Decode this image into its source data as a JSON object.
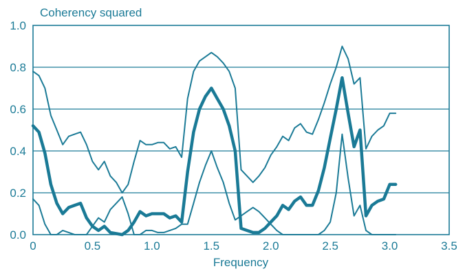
{
  "chart_data": {
    "type": "line",
    "title": "",
    "ylabel": "Coherency squared",
    "xlabel": "Frequency",
    "xlim": [
      0,
      3.5
    ],
    "ylim": [
      0,
      1.0
    ],
    "x_ticks": [
      "0",
      "0.5",
      "1.0",
      "1.5",
      "2.0",
      "2.5",
      "3.0",
      "3.5"
    ],
    "x_tick_values": [
      0,
      0.5,
      1.0,
      1.5,
      2.0,
      2.5,
      3.0,
      3.5
    ],
    "y_ticks": [
      "0.0",
      "0.2",
      "0.4",
      "0.6",
      "0.8",
      "1.0"
    ],
    "y_tick_values": [
      0.0,
      0.2,
      0.4,
      0.6,
      0.8,
      1.0
    ],
    "grid": "horizontal",
    "color": "#1a7a96",
    "series": [
      {
        "role": "upper",
        "x": [
          0,
          0.05,
          0.1,
          0.15,
          0.2,
          0.25,
          0.3,
          0.35,
          0.4,
          0.45,
          0.5,
          0.55,
          0.6,
          0.65,
          0.7,
          0.75,
          0.8,
          0.85,
          0.9,
          0.95,
          1.0,
          1.05,
          1.1,
          1.15,
          1.2,
          1.25,
          1.3,
          1.35,
          1.4,
          1.45,
          1.5,
          1.55,
          1.6,
          1.65,
          1.7,
          1.75,
          1.8,
          1.85,
          1.9,
          1.95,
          2.0,
          2.05,
          2.1,
          2.15,
          2.2,
          2.25,
          2.3,
          2.35,
          2.4,
          2.45,
          2.5,
          2.55,
          2.6,
          2.65,
          2.7,
          2.75,
          2.8,
          2.85,
          2.9,
          2.95,
          3.0,
          3.05
        ],
        "values": [
          0.78,
          0.76,
          0.7,
          0.57,
          0.5,
          0.43,
          0.47,
          0.48,
          0.49,
          0.43,
          0.35,
          0.31,
          0.35,
          0.28,
          0.25,
          0.2,
          0.24,
          0.35,
          0.45,
          0.43,
          0.43,
          0.44,
          0.44,
          0.41,
          0.42,
          0.37,
          0.65,
          0.78,
          0.83,
          0.85,
          0.87,
          0.85,
          0.82,
          0.78,
          0.7,
          0.31,
          0.28,
          0.25,
          0.28,
          0.32,
          0.38,
          0.42,
          0.47,
          0.45,
          0.51,
          0.53,
          0.49,
          0.48,
          0.55,
          0.63,
          0.72,
          0.8,
          0.9,
          0.84,
          0.72,
          0.75,
          0.41,
          0.47,
          0.5,
          0.52,
          0.58,
          0.58
        ]
      },
      {
        "role": "estimate",
        "x": [
          0,
          0.05,
          0.1,
          0.15,
          0.2,
          0.25,
          0.3,
          0.35,
          0.4,
          0.45,
          0.5,
          0.55,
          0.6,
          0.65,
          0.7,
          0.75,
          0.8,
          0.85,
          0.9,
          0.95,
          1.0,
          1.05,
          1.1,
          1.15,
          1.2,
          1.25,
          1.3,
          1.35,
          1.4,
          1.45,
          1.5,
          1.55,
          1.6,
          1.65,
          1.7,
          1.75,
          1.8,
          1.85,
          1.9,
          1.95,
          2.0,
          2.05,
          2.1,
          2.15,
          2.2,
          2.25,
          2.3,
          2.35,
          2.4,
          2.45,
          2.5,
          2.55,
          2.6,
          2.65,
          2.7,
          2.75,
          2.8,
          2.85,
          2.9,
          2.95,
          3.0,
          3.05
        ],
        "values": [
          0.52,
          0.49,
          0.39,
          0.24,
          0.15,
          0.1,
          0.13,
          0.14,
          0.15,
          0.08,
          0.04,
          0.02,
          0.04,
          0.01,
          0.005,
          0.0,
          0.02,
          0.06,
          0.11,
          0.09,
          0.1,
          0.1,
          0.1,
          0.08,
          0.09,
          0.06,
          0.3,
          0.49,
          0.6,
          0.66,
          0.7,
          0.65,
          0.6,
          0.52,
          0.4,
          0.03,
          0.02,
          0.01,
          0.01,
          0.03,
          0.06,
          0.09,
          0.14,
          0.12,
          0.16,
          0.18,
          0.14,
          0.14,
          0.21,
          0.32,
          0.46,
          0.6,
          0.75,
          0.58,
          0.42,
          0.5,
          0.09,
          0.14,
          0.16,
          0.17,
          0.24,
          0.24
        ]
      },
      {
        "role": "lower",
        "x": [
          0,
          0.05,
          0.1,
          0.15,
          0.2,
          0.25,
          0.3,
          0.35,
          0.4,
          0.45,
          0.5,
          0.55,
          0.6,
          0.65,
          0.7,
          0.75,
          0.8,
          0.85,
          0.9,
          0.95,
          1.0,
          1.05,
          1.1,
          1.15,
          1.2,
          1.25,
          1.3,
          1.35,
          1.4,
          1.45,
          1.5,
          1.55,
          1.6,
          1.65,
          1.7,
          1.75,
          1.8,
          1.85,
          1.9,
          1.95,
          2.0,
          2.05,
          2.1,
          2.15,
          2.2,
          2.25,
          2.3,
          2.35,
          2.4,
          2.45,
          2.5,
          2.55,
          2.6,
          2.65,
          2.7,
          2.75,
          2.8,
          2.85,
          2.9,
          2.95,
          3.0,
          3.05
        ],
        "values": [
          0.17,
          0.14,
          0.05,
          0.0,
          0.0,
          0.02,
          0.01,
          0.0,
          0.0,
          0.0,
          0.04,
          0.08,
          0.06,
          0.12,
          0.15,
          0.18,
          0.1,
          0.0,
          0.0,
          0.02,
          0.02,
          0.01,
          0.01,
          0.02,
          0.03,
          0.05,
          0.05,
          0.15,
          0.25,
          0.33,
          0.4,
          0.32,
          0.25,
          0.15,
          0.07,
          0.09,
          0.11,
          0.13,
          0.11,
          0.08,
          0.05,
          0.02,
          0.0,
          0.0,
          0.0,
          0.0,
          0.0,
          0.0,
          0.0,
          0.02,
          0.06,
          0.2,
          0.48,
          0.27,
          0.09,
          0.14,
          0.02,
          0.0,
          0.0,
          0.0,
          0.0,
          0.0
        ]
      }
    ]
  }
}
